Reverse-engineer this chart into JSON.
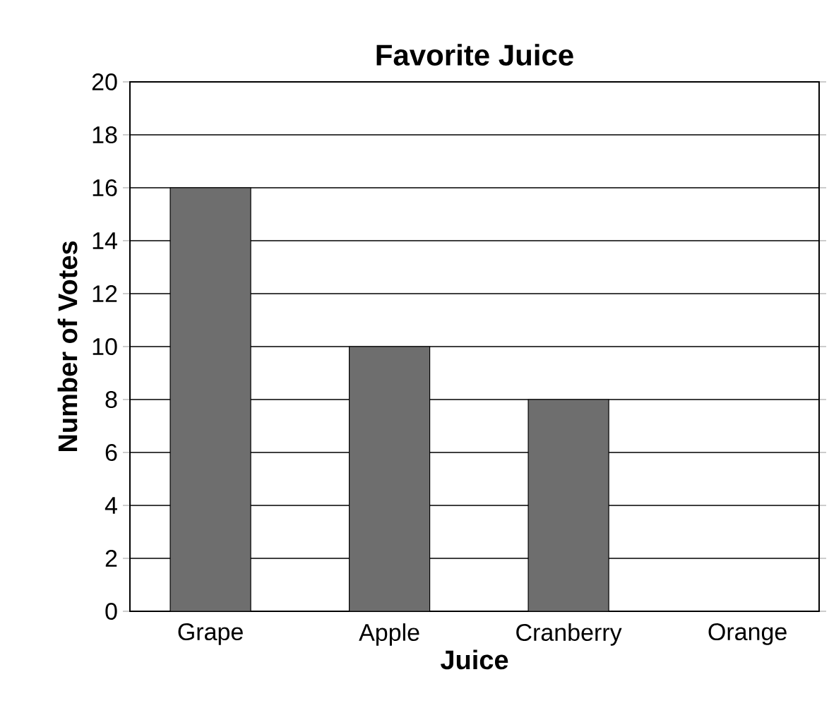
{
  "chart_data": {
    "type": "bar",
    "title": "Favorite Juice",
    "xlabel": "Juice",
    "ylabel": "Number of Votes",
    "categories": [
      "Grape",
      "Apple",
      "Cranberry",
      "Orange"
    ],
    "values": [
      16,
      10,
      8,
      0
    ],
    "color": "#6e6e6e",
    "ylim": [
      0,
      20
    ],
    "yticks": [
      0,
      2,
      4,
      6,
      8,
      10,
      12,
      14,
      16,
      18,
      20
    ],
    "grid": "y"
  }
}
